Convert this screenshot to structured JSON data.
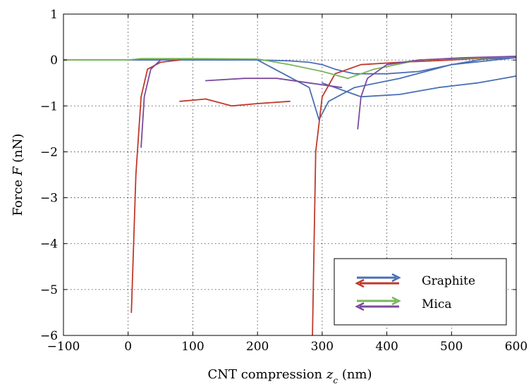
{
  "chart_data": {
    "type": "line",
    "xlabel": "CNT compression z_c (nm)",
    "xlabel_main": "CNT compression ",
    "xlabel_var": "z",
    "xlabel_sub": "c",
    "xlabel_unit": " (nm)",
    "ylabel": "Force F (nN)",
    "ylabel_main": "Force ",
    "ylabel_var": "F",
    "ylabel_unit": " (nN)",
    "xlim": [
      -100,
      600
    ],
    "ylim": [
      -6,
      1
    ],
    "xticks": [
      -100,
      0,
      100,
      200,
      300,
      400,
      500,
      600
    ],
    "xtick_labels": [
      "−100",
      "0",
      "100",
      "200",
      "300",
      "400",
      "500",
      "600"
    ],
    "yticks": [
      1,
      0,
      -1,
      -2,
      -3,
      -4,
      -5,
      -6
    ],
    "ytick_labels": [
      "1",
      "0",
      "−1",
      "−2",
      "−3",
      "−4",
      "−5",
      "−6"
    ],
    "grid": true,
    "legend_position": "bottom-right",
    "colors": {
      "graphite_approach": "#4a6fb5",
      "graphite_retract": "#c0392b",
      "mica_approach": "#7ab55c",
      "mica_retract": "#7b4a9e"
    },
    "series": [
      {
        "name": "Graphite",
        "approach_color": "#4a6fb5",
        "retract_color": "#c0392b",
        "curves": [
          {
            "x": [
              -100,
              0,
              200,
              250,
              280,
              300,
              320,
              350,
              400,
              450,
              500,
              550,
              600
            ],
            "y": [
              0,
              0,
              0,
              -0.02,
              -0.05,
              -0.1,
              -0.2,
              -0.3,
              -0.3,
              -0.25,
              -0.1,
              0.02,
              0.05
            ]
          },
          {
            "x": [
              -100,
              0,
              200,
              280,
              295,
              310,
              350,
              420,
              500,
              600
            ],
            "y": [
              0,
              0,
              0,
              -0.6,
              -1.3,
              -0.9,
              -0.6,
              -0.4,
              -0.1,
              0.05
            ]
          },
          {
            "x": [
              300,
              360,
              420,
              480,
              540,
              580,
              600
            ],
            "y": [
              -0.5,
              -0.8,
              -0.75,
              -0.6,
              -0.5,
              -0.4,
              -0.35
            ]
          }
        ],
        "retract_curves": [
          {
            "x": [
              285,
              290,
              300,
              320,
              360,
              420,
              500,
              560,
              600
            ],
            "y": [
              -6,
              -2,
              -0.8,
              -0.3,
              -0.1,
              -0.05,
              0,
              0.05,
              0.08
            ]
          },
          {
            "x": [
              5,
              12,
              20,
              30,
              50,
              80
            ],
            "y": [
              -5.5,
              -2.5,
              -0.8,
              -0.2,
              -0.05,
              0
            ]
          },
          {
            "x": [
              80,
              120,
              160,
              200,
              250
            ],
            "y": [
              -0.9,
              -0.85,
              -1.0,
              -0.95,
              -0.9
            ]
          }
        ]
      },
      {
        "name": "Mica",
        "approach_color": "#7ab55c",
        "retract_color": "#7b4a9e",
        "curves": [
          {
            "x": [
              -100,
              0,
              20,
              100,
              200,
              250,
              300,
              340,
              380,
              450,
              550,
              600
            ],
            "y": [
              0,
              0,
              0.03,
              0.03,
              0.02,
              -0.1,
              -0.25,
              -0.4,
              -0.2,
              0,
              0.05,
              0.08
            ]
          }
        ],
        "retract_curves": [
          {
            "x": [
              355,
              360,
              370,
              400,
              450,
              520,
              600
            ],
            "y": [
              -1.5,
              -0.8,
              -0.4,
              -0.1,
              0,
              0.05,
              0.08
            ]
          },
          {
            "x": [
              20,
              25,
              35,
              50
            ],
            "y": [
              -1.9,
              -0.8,
              -0.2,
              0
            ]
          },
          {
            "x": [
              120,
              180,
              230,
              280,
              330
            ],
            "y": [
              -0.45,
              -0.4,
              -0.4,
              -0.5,
              -0.6
            ]
          }
        ]
      }
    ]
  },
  "legend": {
    "items": [
      {
        "label": "Graphite",
        "approach_color": "#4a6fb5",
        "retract_color": "#c0392b"
      },
      {
        "label": "Mica",
        "approach_color": "#7ab55c",
        "retract_color": "#7b4a9e"
      }
    ]
  }
}
